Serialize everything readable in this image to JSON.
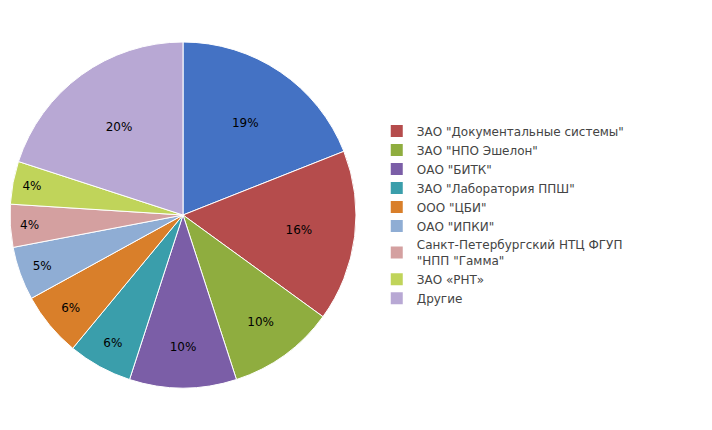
{
  "chart_data": {
    "type": "pie",
    "values": [
      19,
      16,
      10,
      10,
      6,
      6,
      5,
      4,
      4,
      20
    ],
    "value_labels": [
      "19%",
      "16%",
      "10%",
      "10%",
      "6%",
      "6%",
      "5%",
      "4%",
      "4%",
      "20%"
    ],
    "colors": [
      "#4472c4",
      "#b54c4c",
      "#8fad3f",
      "#7b5ea7",
      "#3a9eab",
      "#d97f2a",
      "#8fadd4",
      "#d4a0a0",
      "#c0d45a",
      "#b8a8d4"
    ],
    "data_labels": true,
    "legend": "right",
    "series": [
      {
        "name": "ЗАО \"Документальные системы\"",
        "color": "#b54c4c"
      },
      {
        "name": "ЗАО \"НПО Эшелон\"",
        "color": "#8fad3f"
      },
      {
        "name": "ОАО \"БИТК\"",
        "color": "#7b5ea7"
      },
      {
        "name": "ЗАО \"Лаборатория ППШ\"",
        "color": "#3a9eab"
      },
      {
        "name": "ООО \"ЦБИ\"",
        "color": "#d97f2a"
      },
      {
        "name": "ОАО \"ИПКИ\"",
        "color": "#8fadd4"
      },
      {
        "name": "Санкт-Петербургский НТЦ ФГУП\n\"НПП \"Гамма\"",
        "color": "#d4a0a0"
      },
      {
        "name": "ЗАО «РНТ»",
        "color": "#c0d45a"
      },
      {
        "name": "Другие",
        "color": "#b8a8d4"
      }
    ]
  }
}
